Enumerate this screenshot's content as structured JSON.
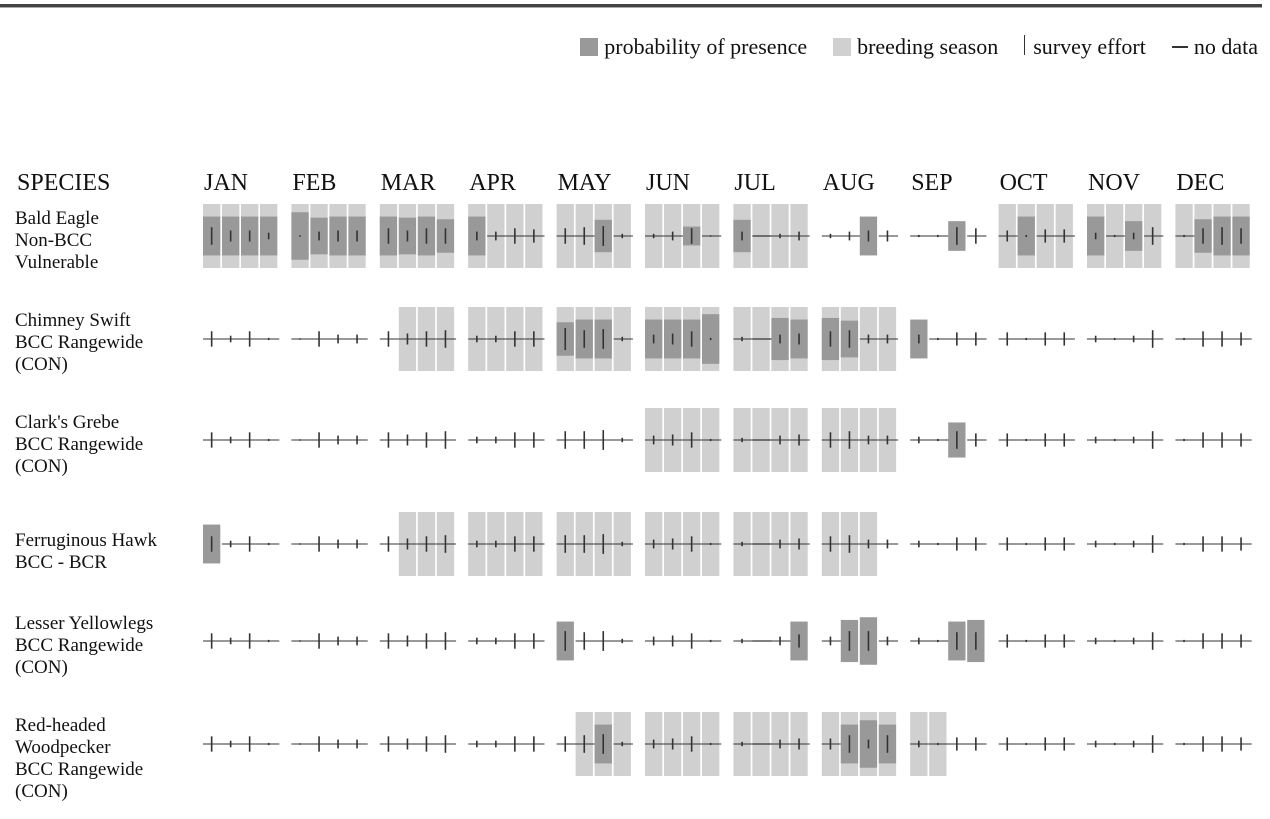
{
  "legend": {
    "presence": "probability of presence",
    "breeding": "breeding season",
    "effort": "survey effort",
    "nodata": "no data"
  },
  "header": {
    "species": "SPECIES",
    "months": [
      "JAN",
      "FEB",
      "MAR",
      "APR",
      "MAY",
      "JUN",
      "JUL",
      "AUG",
      "SEP",
      "OCT",
      "NOV",
      "DEC"
    ]
  },
  "colors": {
    "presence": "#999999",
    "breeding": "#d0d0d0",
    "line": "#333333"
  },
  "chart_data": {
    "type": "table",
    "notes": "Each species row has 48 weekly slots (4 per month). breeding: 1 = breeding season. presence: relative probability of presence 0-1. effort: relative survey effort 0-1; null = no data.",
    "species": [
      {
        "name_lines": [
          "Bald Eagle",
          "Non-BCC",
          "Vulnerable"
        ],
        "breeding": [
          1,
          1,
          1,
          1,
          1,
          1,
          1,
          1,
          1,
          1,
          1,
          1,
          1,
          1,
          1,
          1,
          1,
          1,
          1,
          1,
          1,
          1,
          1,
          1,
          1,
          1,
          1,
          1,
          0,
          0,
          0,
          0,
          0,
          0,
          0,
          0,
          1,
          1,
          1,
          1,
          1,
          1,
          1,
          1,
          1,
          1,
          1,
          1
        ],
        "presence": [
          0.72,
          0.72,
          0.72,
          0.72,
          0.88,
          0.68,
          0.72,
          0.72,
          0.72,
          0.68,
          0.72,
          0.62,
          0.72,
          0,
          0,
          0,
          0,
          0,
          0.6,
          0,
          0,
          0,
          0.35,
          0,
          0.6,
          0,
          0,
          0,
          0,
          0,
          0.72,
          0,
          0,
          0,
          0.55,
          0,
          0,
          0.72,
          0,
          0,
          0.72,
          0,
          0.55,
          0,
          0,
          0.62,
          0.72,
          0.72
        ],
        "effort": [
          0.8,
          0.5,
          0.5,
          0.3,
          0.05,
          0.4,
          0.5,
          0.5,
          0.7,
          0.5,
          0.7,
          0.7,
          0.4,
          0.4,
          0.7,
          0.6,
          0.7,
          0.8,
          0.9,
          0.2,
          0.2,
          0.4,
          0.7,
          0.05,
          0.4,
          null,
          0.2,
          0.4,
          0.2,
          0.4,
          0.5,
          0.5,
          0.1,
          0.1,
          0.8,
          0.7,
          0.5,
          0.1,
          0.6,
          0.6,
          0.3,
          0.1,
          0.3,
          0.8,
          0.1,
          0.7,
          0.8,
          0.7
        ]
      },
      {
        "name_lines": [
          "Chimney Swift",
          "BCC Rangewide",
          "(CON)"
        ],
        "breeding": [
          0,
          0,
          0,
          0,
          0,
          0,
          0,
          0,
          0,
          1,
          1,
          1,
          1,
          1,
          1,
          1,
          1,
          1,
          1,
          1,
          1,
          1,
          1,
          1,
          1,
          1,
          1,
          1,
          1,
          1,
          1,
          1,
          0,
          0,
          0,
          0,
          0,
          0,
          0,
          0,
          0,
          0,
          0,
          0,
          0,
          0,
          0,
          0
        ],
        "presence": [
          0,
          0,
          0,
          0,
          0,
          0,
          0,
          0,
          0,
          0,
          0,
          0,
          0,
          0,
          0,
          0,
          0.62,
          0.72,
          0.72,
          0,
          0.72,
          0.72,
          0.72,
          0.92,
          0,
          0,
          0.78,
          0.72,
          0.78,
          0.68,
          0,
          0,
          0.72,
          0,
          0,
          0,
          0,
          0,
          0,
          0,
          0,
          0,
          0,
          0,
          0,
          0,
          0,
          0
        ],
        "effort": [
          0.7,
          0.3,
          0.7,
          0.1,
          0.05,
          0.7,
          0.4,
          0.4,
          0.7,
          0.5,
          0.7,
          0.8,
          0.3,
          0.3,
          0.7,
          0.7,
          1.0,
          0.8,
          0.9,
          0.2,
          0.4,
          0.5,
          0.7,
          0.1,
          0.2,
          null,
          0.4,
          0.5,
          0.7,
          0.8,
          0.4,
          0.4,
          0.4,
          0.1,
          0.6,
          0.6,
          0.6,
          0.1,
          0.6,
          0.6,
          0.3,
          0.1,
          0.3,
          0.8,
          0.1,
          0.7,
          0.7,
          0.6
        ]
      },
      {
        "name_lines": [
          "Clark's Grebe",
          "BCC Rangewide",
          "(CON)"
        ],
        "breeding": [
          0,
          0,
          0,
          0,
          0,
          0,
          0,
          0,
          0,
          0,
          0,
          0,
          0,
          0,
          0,
          0,
          0,
          0,
          0,
          0,
          1,
          1,
          1,
          1,
          1,
          1,
          1,
          1,
          1,
          1,
          1,
          1,
          0,
          0,
          0,
          0,
          0,
          0,
          0,
          0,
          0,
          0,
          0,
          0,
          0,
          0,
          0,
          0
        ],
        "presence": [
          0,
          0,
          0,
          0,
          0,
          0,
          0,
          0,
          0,
          0,
          0,
          0,
          0,
          0,
          0,
          0,
          0,
          0,
          0,
          0,
          0,
          0,
          0,
          0,
          0,
          0,
          0,
          0,
          0,
          0,
          0,
          0,
          0,
          0,
          0.65,
          0,
          0,
          0,
          0,
          0,
          0,
          0,
          0,
          0,
          0,
          0,
          0,
          0
        ],
        "effort": [
          0.7,
          0.3,
          0.7,
          0.1,
          0.05,
          0.7,
          0.4,
          0.4,
          0.7,
          0.5,
          0.7,
          0.8,
          0.3,
          0.3,
          0.7,
          0.7,
          0.8,
          0.8,
          0.9,
          0.2,
          0.4,
          0.5,
          0.7,
          0.1,
          0.2,
          null,
          0.4,
          0.5,
          0.7,
          0.8,
          0.4,
          0.4,
          0.3,
          0.1,
          0.8,
          0.6,
          0.6,
          0.1,
          0.6,
          0.6,
          0.3,
          0.1,
          0.3,
          0.8,
          0.1,
          0.7,
          0.7,
          0.6
        ]
      },
      {
        "name_lines": [
          "Ferruginous Hawk",
          "BCC - BCR"
        ],
        "breeding": [
          0,
          0,
          0,
          0,
          0,
          0,
          0,
          0,
          0,
          1,
          1,
          1,
          1,
          1,
          1,
          1,
          1,
          1,
          1,
          1,
          1,
          1,
          1,
          1,
          1,
          1,
          1,
          1,
          1,
          1,
          1,
          0,
          0,
          0,
          0,
          0,
          0,
          0,
          0,
          0,
          0,
          0,
          0,
          0,
          0,
          0,
          0,
          0
        ],
        "presence": [
          0.72,
          0,
          0,
          0,
          0,
          0,
          0,
          0,
          0,
          0,
          0,
          0,
          0,
          0,
          0,
          0,
          0,
          0,
          0,
          0,
          0,
          0,
          0,
          0,
          0,
          0,
          0,
          0,
          0,
          0,
          0,
          0,
          0,
          0,
          0,
          0,
          0,
          0,
          0,
          0,
          0,
          0,
          0,
          0,
          0,
          0,
          0,
          0
        ],
        "effort": [
          0.7,
          0.3,
          0.7,
          0.1,
          0.05,
          0.7,
          0.4,
          0.4,
          0.7,
          0.5,
          0.7,
          0.8,
          0.3,
          0.3,
          0.7,
          0.7,
          0.8,
          0.8,
          0.9,
          0.2,
          0.4,
          0.5,
          0.7,
          0.1,
          0.2,
          null,
          0.4,
          0.5,
          0.7,
          0.8,
          0.4,
          0.4,
          0.3,
          0.1,
          0.6,
          0.6,
          0.6,
          0.1,
          0.6,
          0.6,
          0.3,
          0.1,
          0.3,
          0.8,
          0.1,
          0.7,
          0.7,
          0.6
        ]
      },
      {
        "name_lines": [
          "Lesser Yellowlegs",
          "BCC Rangewide",
          "(CON)"
        ],
        "breeding": [
          0,
          0,
          0,
          0,
          0,
          0,
          0,
          0,
          0,
          0,
          0,
          0,
          0,
          0,
          0,
          0,
          0,
          0,
          0,
          0,
          0,
          0,
          0,
          0,
          0,
          0,
          0,
          0,
          0,
          0,
          0,
          0,
          0,
          0,
          0,
          0,
          0,
          0,
          0,
          0,
          0,
          0,
          0,
          0,
          0,
          0,
          0,
          0
        ],
        "presence": [
          0,
          0,
          0,
          0,
          0,
          0,
          0,
          0,
          0,
          0,
          0,
          0,
          0,
          0,
          0,
          0,
          0.72,
          0,
          0,
          0,
          0,
          0,
          0,
          0,
          0,
          0,
          0,
          0.72,
          0,
          0.78,
          0.88,
          0,
          0,
          0,
          0.72,
          0.78,
          0,
          0,
          0,
          0,
          0,
          0,
          0,
          0,
          0,
          0,
          0,
          0
        ],
        "effort": [
          0.7,
          0.3,
          0.7,
          0.1,
          0.05,
          0.7,
          0.4,
          0.4,
          0.7,
          0.5,
          0.7,
          0.8,
          0.3,
          0.3,
          0.7,
          0.7,
          0.9,
          0.8,
          0.9,
          0.2,
          0.4,
          0.5,
          0.7,
          0.1,
          0.2,
          null,
          0.4,
          0.6,
          0.4,
          0.9,
          0.9,
          0.4,
          0.3,
          0.1,
          0.8,
          0.8,
          0.6,
          0.1,
          0.6,
          0.6,
          0.3,
          0.1,
          0.3,
          0.8,
          0.1,
          0.7,
          0.7,
          0.6
        ]
      },
      {
        "name_lines": [
          "Red-headed",
          "Woodpecker",
          "BCC Rangewide",
          "(CON)"
        ],
        "breeding": [
          0,
          0,
          0,
          0,
          0,
          0,
          0,
          0,
          0,
          0,
          0,
          0,
          0,
          0,
          0,
          0,
          0,
          1,
          1,
          1,
          1,
          1,
          1,
          1,
          1,
          1,
          1,
          1,
          1,
          1,
          1,
          1,
          1,
          1,
          0,
          0,
          0,
          0,
          0,
          0,
          0,
          0,
          0,
          0,
          0,
          0,
          0,
          0
        ],
        "presence": [
          0,
          0,
          0,
          0,
          0,
          0,
          0,
          0,
          0,
          0,
          0,
          0,
          0,
          0,
          0,
          0,
          0,
          0,
          0.72,
          0,
          0,
          0,
          0,
          0,
          0,
          0,
          0,
          0,
          0,
          0.72,
          0.88,
          0.72,
          0,
          0,
          0,
          0,
          0,
          0,
          0,
          0,
          0,
          0,
          0,
          0,
          0,
          0,
          0,
          0
        ],
        "effort": [
          0.7,
          0.3,
          0.7,
          0.1,
          0.05,
          0.7,
          0.4,
          0.4,
          0.7,
          0.5,
          0.7,
          0.8,
          0.3,
          0.3,
          0.7,
          0.7,
          0.7,
          0.8,
          0.9,
          0.2,
          0.4,
          0.5,
          0.7,
          0.1,
          0.2,
          null,
          0.4,
          0.5,
          0.5,
          0.8,
          0.4,
          0.8,
          0.3,
          0.1,
          0.6,
          0.6,
          0.6,
          0.1,
          0.6,
          0.6,
          0.3,
          0.1,
          0.3,
          0.8,
          0.1,
          0.7,
          0.7,
          0.6
        ]
      }
    ]
  }
}
